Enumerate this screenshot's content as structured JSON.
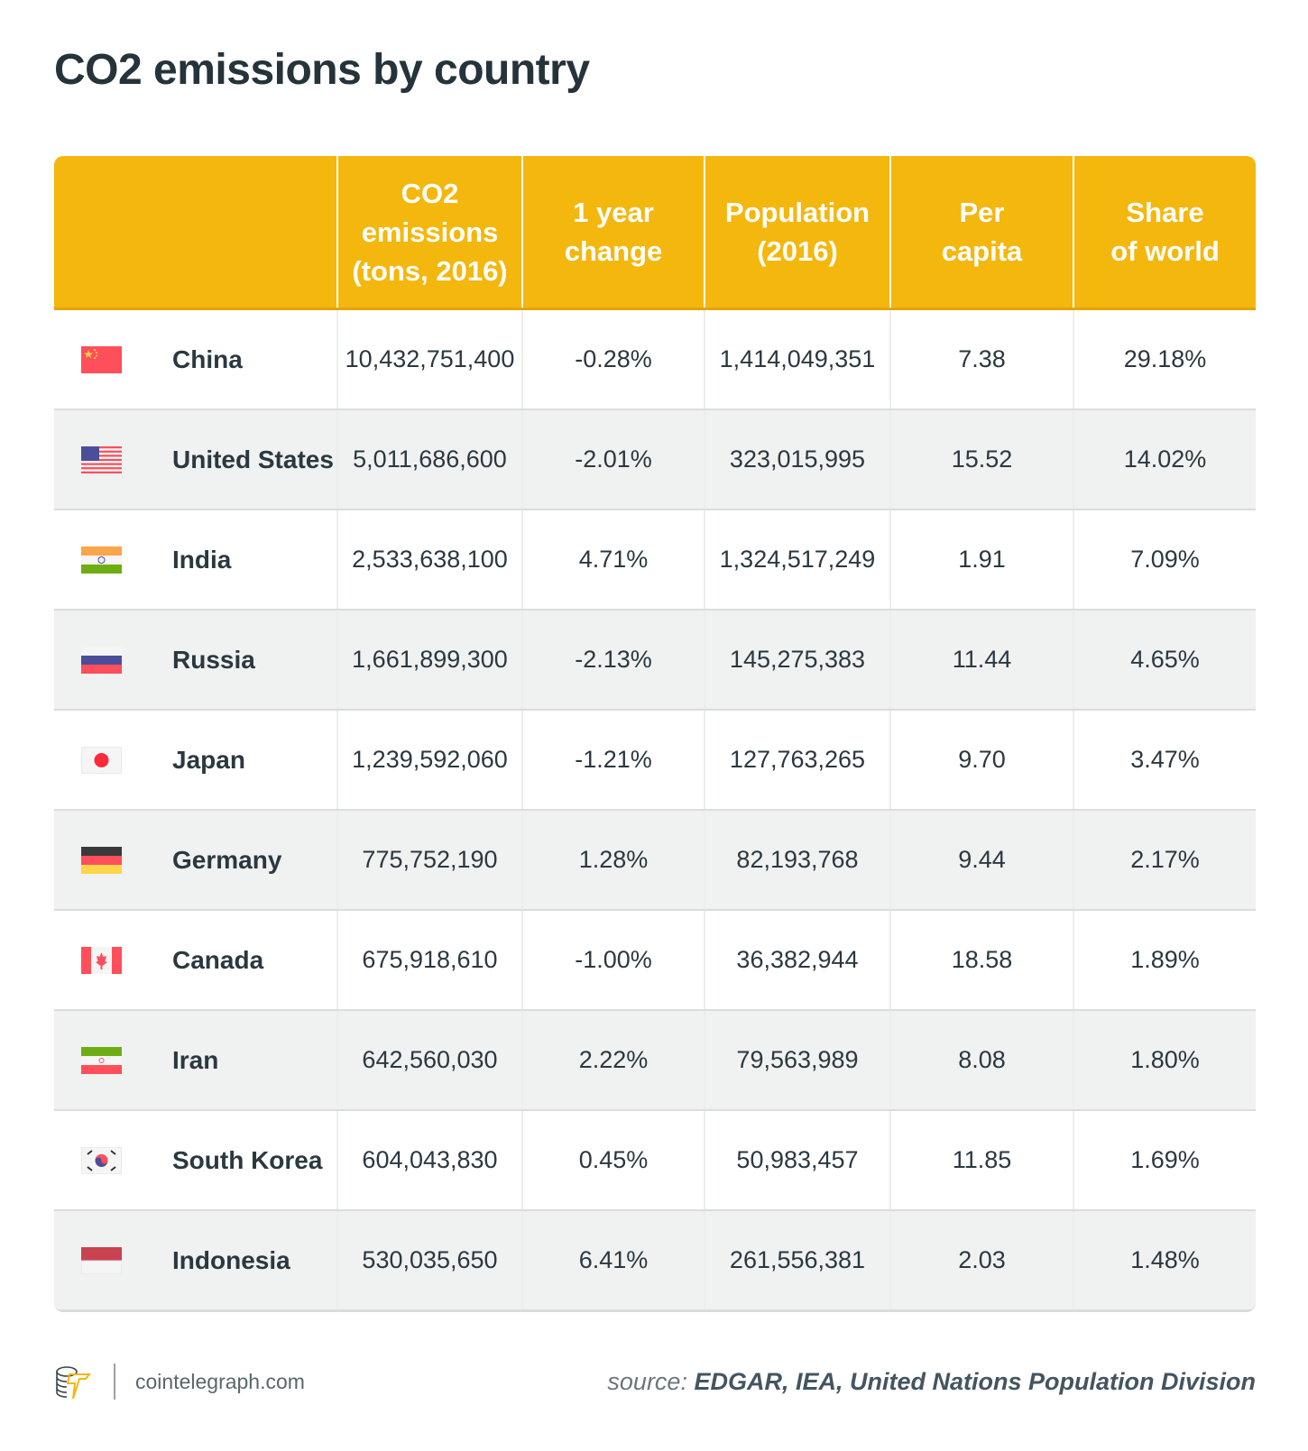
{
  "title": "CO2 emissions by country",
  "header": {
    "columns": [
      "",
      "CO2\nemissions\n(tons, 2016)",
      "1 year\nchange",
      "Population\n(2016)",
      "Per\ncapita",
      "Share\nof world"
    ]
  },
  "colors": {
    "header": "#f4b70e",
    "alt_row": "#f0f1f1",
    "text": "#2b3840"
  },
  "rows": [
    {
      "flag": "cn",
      "country": "China",
      "co2": "10,432,751,400",
      "change": "-0.28%",
      "population": "1,414,049,351",
      "per_capita": "7.38",
      "share": "29.18%"
    },
    {
      "flag": "us",
      "country": "United States",
      "co2": "5,011,686,600",
      "change": "-2.01%",
      "population": "323,015,995",
      "per_capita": "15.52",
      "share": "14.02%"
    },
    {
      "flag": "in",
      "country": "India",
      "co2": "2,533,638,100",
      "change": "4.71%",
      "population": "1,324,517,249",
      "per_capita": "1.91",
      "share": "7.09%"
    },
    {
      "flag": "ru",
      "country": "Russia",
      "co2": "1,661,899,300",
      "change": "-2.13%",
      "population": "145,275,383",
      "per_capita": "11.44",
      "share": "4.65%"
    },
    {
      "flag": "jp",
      "country": "Japan",
      "co2": "1,239,592,060",
      "change": "-1.21%",
      "population": "127,763,265",
      "per_capita": "9.70",
      "share": "3.47%"
    },
    {
      "flag": "de",
      "country": "Germany",
      "co2": "775,752,190",
      "change": "1.28%",
      "population": "82,193,768",
      "per_capita": "9.44",
      "share": "2.17%"
    },
    {
      "flag": "ca",
      "country": "Canada",
      "co2": "675,918,610",
      "change": "-1.00%",
      "population": "36,382,944",
      "per_capita": "18.58",
      "share": "1.89%"
    },
    {
      "flag": "ir",
      "country": "Iran",
      "co2": "642,560,030",
      "change": "2.22%",
      "population": "79,563,989",
      "per_capita": "8.08",
      "share": "1.80%"
    },
    {
      "flag": "kr",
      "country": "South Korea",
      "co2": "604,043,830",
      "change": "0.45%",
      "population": "50,983,457",
      "per_capita": "11.85",
      "share": "1.69%"
    },
    {
      "flag": "id",
      "country": "Indonesia",
      "co2": "530,035,650",
      "change": "6.41%",
      "population": "261,556,381",
      "per_capita": "2.03",
      "share": "1.48%"
    }
  ],
  "footer": {
    "site": "cointelegraph.com",
    "source_label": "source:",
    "source_text": "EDGAR, IEA, United Nations Population Division"
  }
}
